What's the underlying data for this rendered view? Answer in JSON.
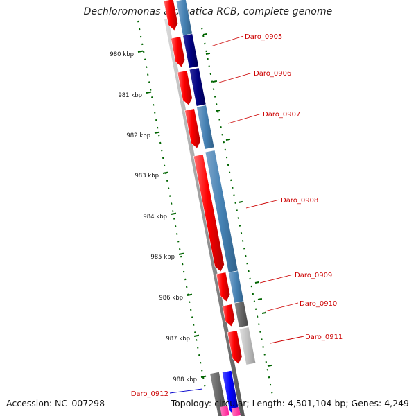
{
  "title": "Dechloromonas aromatica RCB, complete genome",
  "footer": {
    "accession": "Accession: NC_007298",
    "topology": "Topology: circular; Length: 4,501,104 bp; Genes: 4,249"
  },
  "scale_labels": [
    "980 kbp",
    "981 kbp",
    "982 kbp",
    "983 kbp",
    "984 kbp",
    "985 kbp",
    "986 kbp",
    "987 kbp",
    "988 kbp"
  ],
  "gene_labels": [
    {
      "name": "Daro_0905",
      "color": "#cc0000"
    },
    {
      "name": "Daro_0906",
      "color": "#cc0000"
    },
    {
      "name": "Daro_0907",
      "color": "#cc0000"
    },
    {
      "name": "Daro_0908",
      "color": "#cc0000"
    },
    {
      "name": "Daro_0909",
      "color": "#cc0000"
    },
    {
      "name": "Daro_0910",
      "color": "#cc0000"
    },
    {
      "name": "Daro_0911",
      "color": "#cc0000"
    },
    {
      "name": "Daro_0912",
      "color": "#0000cc"
    }
  ],
  "colors": {
    "cds_red": "#ff0000",
    "cog_navy": "#000080",
    "cog_steelblue": "#4682b4",
    "cog_gray": "#666666",
    "cog_lightgray": "#c0c0c0",
    "cog_blue": "#0000ff",
    "cog_pink": "#ff1493",
    "backbone": "#888888",
    "tick_green": "#006400",
    "label_red": "#cc0000",
    "label_blue": "#0000cc"
  }
}
